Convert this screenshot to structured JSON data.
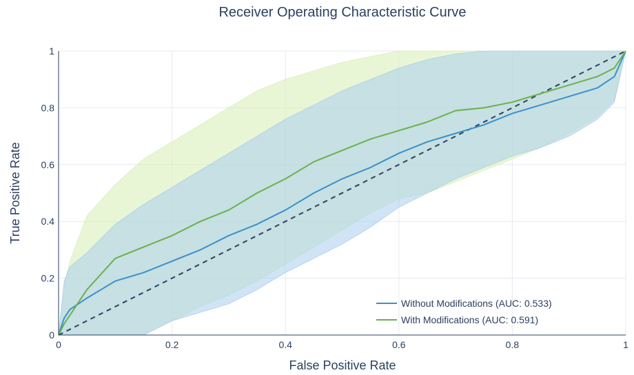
{
  "chart_data": {
    "type": "line",
    "title": "Receiver Operating Characteristic Curve",
    "xlabel": "False Positive Rate",
    "ylabel": "True Positive Rate",
    "xlim": [
      0,
      1
    ],
    "ylim": [
      0,
      1
    ],
    "xticks": [
      "0",
      "0.2",
      "0.4",
      "0.6",
      "0.8",
      "1"
    ],
    "yticks": [
      "0",
      "0.2",
      "0.4",
      "0.6",
      "0.8",
      "1"
    ],
    "grid": true,
    "legend_position": "bottom-right",
    "x": [
      0,
      0.01,
      0.02,
      0.05,
      0.1,
      0.15,
      0.2,
      0.25,
      0.3,
      0.35,
      0.4,
      0.45,
      0.5,
      0.55,
      0.6,
      0.65,
      0.7,
      0.75,
      0.8,
      0.85,
      0.9,
      0.95,
      0.98,
      1.0
    ],
    "series": [
      {
        "name": "Without Modifications (AUC: 0.533)",
        "color": "#3a8fc9",
        "band_color": "#a9cdee",
        "values": [
          0,
          0.06,
          0.09,
          0.13,
          0.19,
          0.22,
          0.26,
          0.3,
          0.35,
          0.39,
          0.44,
          0.5,
          0.55,
          0.59,
          0.64,
          0.68,
          0.71,
          0.74,
          0.78,
          0.81,
          0.84,
          0.87,
          0.91,
          1.0
        ],
        "upper": [
          0,
          0.19,
          0.24,
          0.29,
          0.39,
          0.46,
          0.52,
          0.58,
          0.64,
          0.7,
          0.76,
          0.81,
          0.86,
          0.9,
          0.94,
          0.97,
          0.99,
          1.0,
          1.0,
          1.0,
          1.0,
          1.0,
          1.0,
          1.0
        ],
        "lower": [
          0,
          0,
          0,
          0,
          0,
          0,
          0.05,
          0.08,
          0.11,
          0.16,
          0.22,
          0.27,
          0.32,
          0.38,
          0.45,
          0.5,
          0.55,
          0.59,
          0.63,
          0.66,
          0.7,
          0.76,
          0.82,
          1.0
        ]
      },
      {
        "name": "With Modifications (AUC: 0.591)",
        "color": "#6ab04c",
        "band_color": "#d7efb5",
        "values": [
          0,
          0.04,
          0.07,
          0.16,
          0.27,
          0.31,
          0.35,
          0.4,
          0.44,
          0.5,
          0.55,
          0.61,
          0.65,
          0.69,
          0.72,
          0.75,
          0.79,
          0.8,
          0.82,
          0.85,
          0.88,
          0.91,
          0.94,
          1.0
        ],
        "upper": [
          0,
          0.18,
          0.26,
          0.42,
          0.53,
          0.62,
          0.68,
          0.74,
          0.8,
          0.86,
          0.9,
          0.93,
          0.96,
          0.98,
          1.0,
          1.0,
          1.0,
          1.0,
          1.0,
          1.0,
          1.0,
          1.0,
          1.0,
          1.0
        ],
        "lower": [
          0,
          0,
          0,
          0,
          0,
          0,
          0.05,
          0.1,
          0.14,
          0.19,
          0.25,
          0.31,
          0.37,
          0.43,
          0.48,
          0.5,
          0.54,
          0.58,
          0.62,
          0.66,
          0.71,
          0.77,
          0.83,
          1.0
        ]
      }
    ],
    "reference_line": {
      "x": [
        0,
        1
      ],
      "y": [
        0,
        1
      ],
      "color": "#2a3f5f",
      "style": "dashed"
    }
  }
}
